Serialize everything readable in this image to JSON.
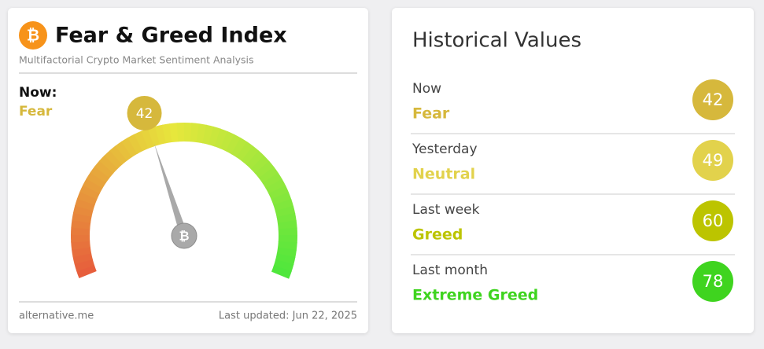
{
  "index_card": {
    "logo_glyph": "₿",
    "title": "Fear & Greed Index",
    "subtitle": "Multifactorial Crypto Market Sentiment Analysis",
    "now_label": "Now:",
    "now_classification": "Fear",
    "now_color": "#d6b83c",
    "gauge": {
      "value": 42,
      "range": [
        0,
        100
      ]
    },
    "footer_source": "alternative.me",
    "footer_updated": "Last updated: Jun 22, 2025"
  },
  "historical": {
    "title": "Historical Values",
    "rows": [
      {
        "period": "Now",
        "classification": "Fear",
        "value": 42,
        "color": "#d6b83c"
      },
      {
        "period": "Yesterday",
        "classification": "Neutral",
        "value": 49,
        "color": "#e2d24c"
      },
      {
        "period": "Last week",
        "classification": "Greed",
        "value": 60,
        "color": "#bcc400"
      },
      {
        "period": "Last month",
        "classification": "Extreme Greed",
        "value": 78,
        "color": "#3fd41f"
      }
    ]
  }
}
